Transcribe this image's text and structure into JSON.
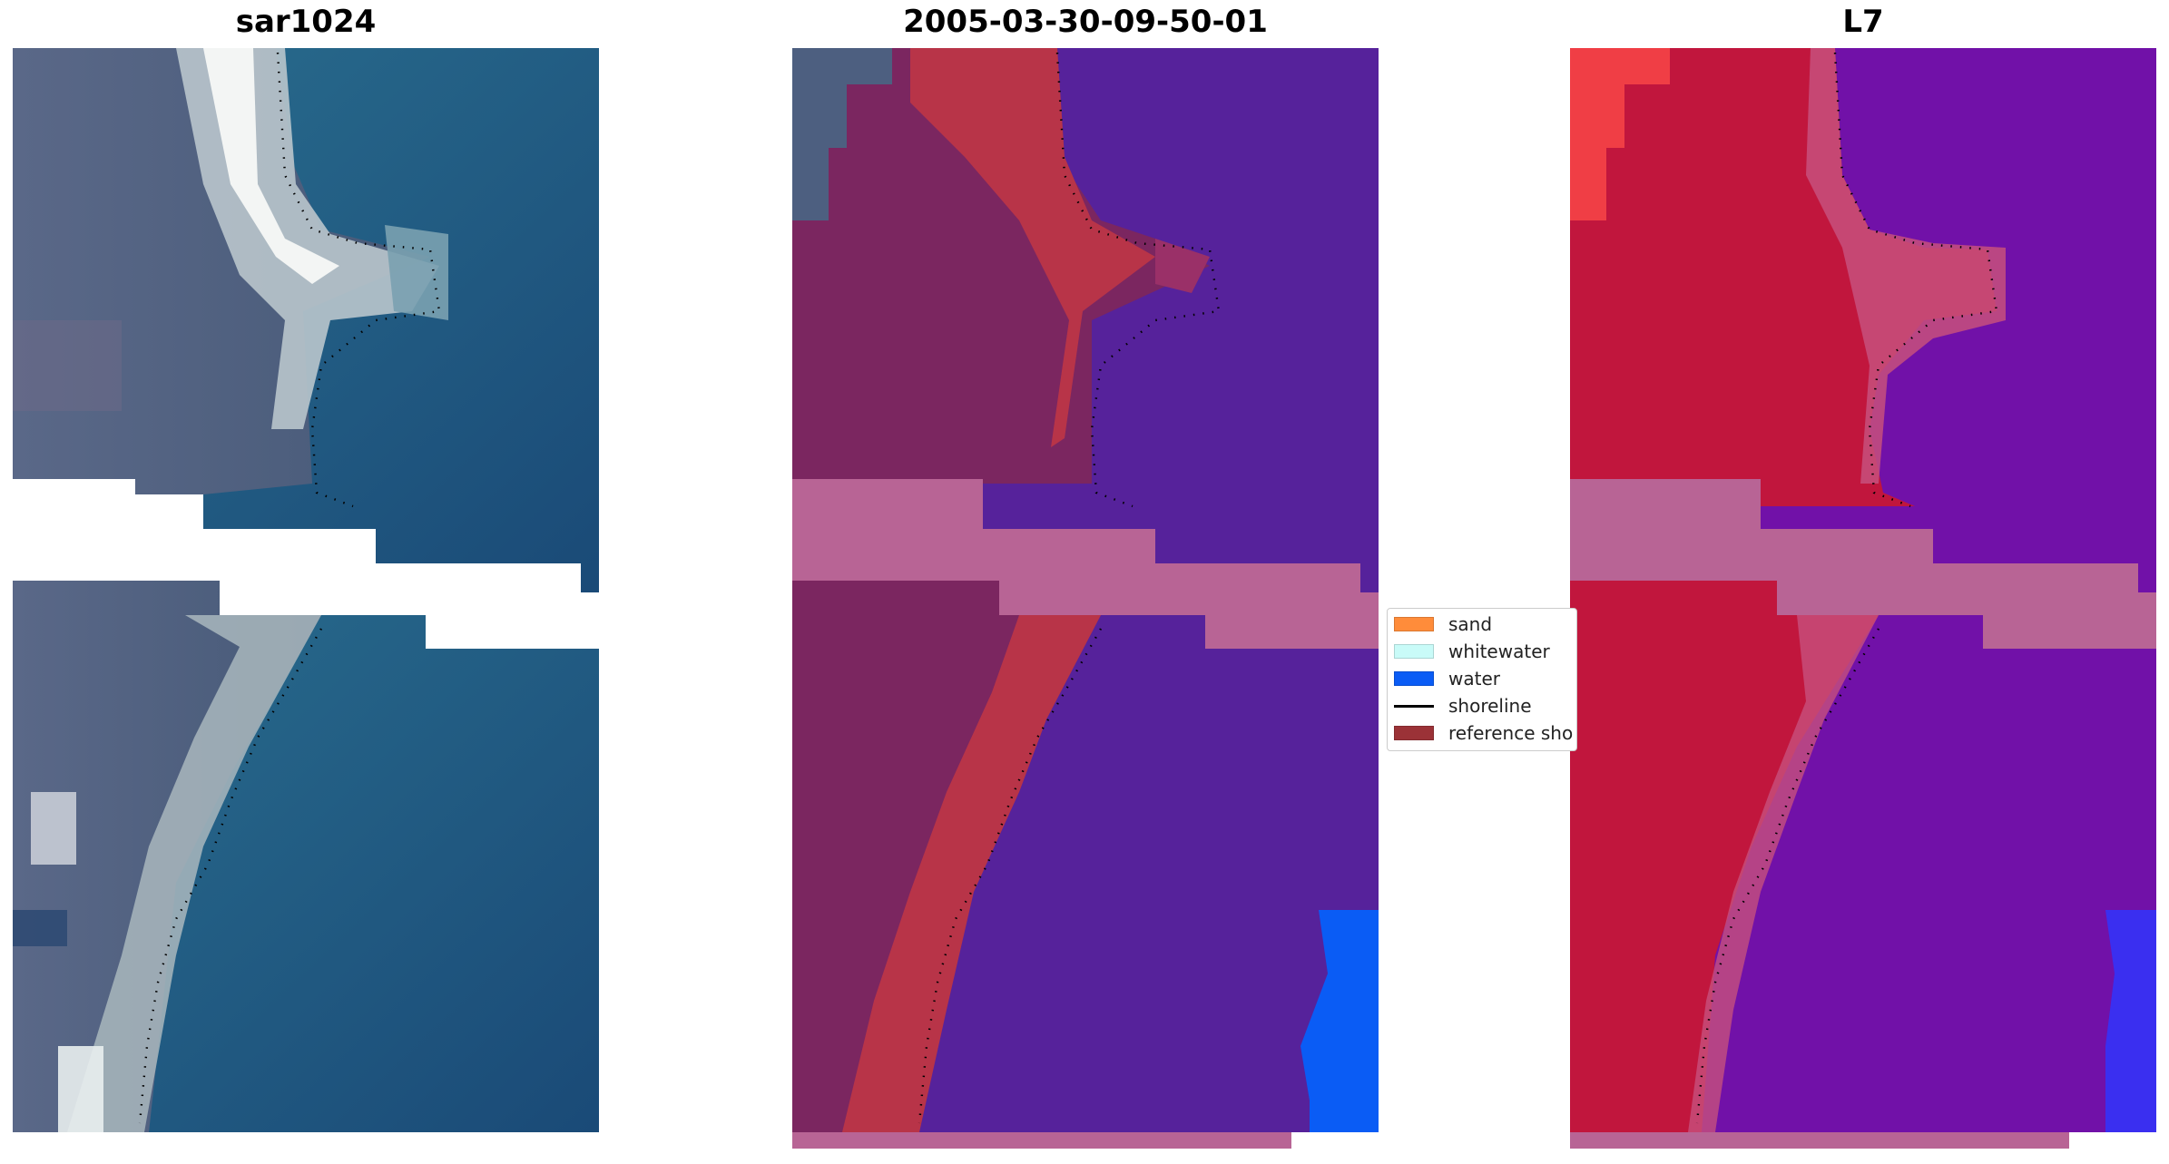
{
  "panels": [
    {
      "title": "sar1024"
    },
    {
      "title": "2005-03-30-09-50-01"
    },
    {
      "title": "L7"
    }
  ],
  "legend": {
    "items": [
      {
        "label": "sand",
        "color": "#ff8c3a",
        "kind": "patch"
      },
      {
        "label": "whitewater",
        "color": "#c9fbf8",
        "kind": "patch"
      },
      {
        "label": "water",
        "color": "#0a5cf5",
        "kind": "patch"
      },
      {
        "label": "shoreline",
        "color": "#000000",
        "kind": "line"
      },
      {
        "label": "reference sho",
        "color": "#9b3237",
        "kind": "patch"
      }
    ]
  },
  "colors": {
    "background": "#ffffff",
    "rgb_water": "#1d5c86",
    "rgb_land": "#4d6080",
    "rgb_sand": "#eef1f2",
    "class_land": "#7b2660",
    "class_sand": "#b83448",
    "class_water": "#56229b",
    "class_nodata": "#b86495",
    "class_water_pure": "#0a5cf5",
    "l7_land": "#c1163d",
    "l7_water": "#7111a8",
    "l7_nodata": "#b86495"
  }
}
